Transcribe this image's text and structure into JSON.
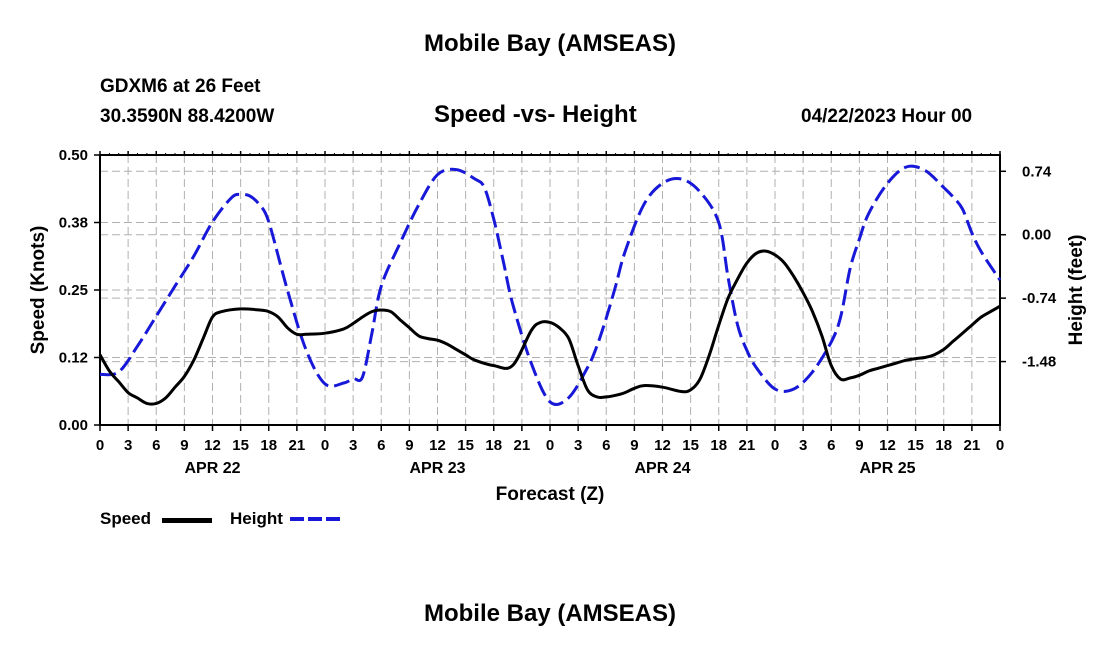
{
  "page": {
    "title_top": "Mobile Bay (AMSEAS)",
    "station": "GDXM6 at 26 Feet",
    "location": "30.3590N  88.4200W",
    "subtitle": "Speed -vs- Height",
    "date": "04/22/2023 Hour 00",
    "title_bottom": "Mobile Bay (AMSEAS)",
    "legend": {
      "speed_label": "Speed",
      "height_label": "Height"
    }
  },
  "chart_data": {
    "type": "line",
    "xlabel": "Forecast (Z)",
    "ylabel_left": "Speed (Knots)",
    "ylabel_right": "Height (feet)",
    "x_range_hours": [
      0,
      96
    ],
    "xtick_labels": [
      "0",
      "3",
      "6",
      "9",
      "12",
      "15",
      "18",
      "21",
      "0",
      "3",
      "6",
      "9",
      "12",
      "15",
      "18",
      "21",
      "0",
      "3",
      "6",
      "9",
      "12",
      "15",
      "18",
      "21",
      "0",
      "3",
      "6",
      "9",
      "12",
      "15",
      "18",
      "21",
      "0"
    ],
    "day_labels": [
      {
        "label": "APR 22",
        "hour": 12
      },
      {
        "label": "APR 23",
        "hour": 36
      },
      {
        "label": "APR 24",
        "hour": 60
      },
      {
        "label": "APR 25",
        "hour": 84
      }
    ],
    "left_axis": {
      "ylim": [
        0,
        0.5
      ],
      "ticks": [
        "0.00",
        "0.12",
        "0.25",
        "0.38",
        "0.50"
      ]
    },
    "right_axis": {
      "ylim": [
        -2.22,
        0.93
      ],
      "ticks": [
        {
          "label": "0.74",
          "value": 0.74
        },
        {
          "label": "0.00",
          "value": 0.0
        },
        {
          "label": "-0.74",
          "value": -0.74
        },
        {
          "label": "-1.48",
          "value": -1.48
        }
      ]
    },
    "series": [
      {
        "name": "Speed",
        "color": "#000000",
        "axis": "left",
        "style": "solid",
        "x": [
          0,
          1,
          2,
          3,
          4,
          5,
          6,
          7,
          8,
          9,
          10,
          11,
          12,
          13,
          15,
          17,
          18,
          19,
          20,
          21,
          22,
          24,
          26,
          27,
          28,
          29,
          30,
          31,
          32,
          33,
          34,
          35,
          36,
          37,
          38,
          39,
          40,
          42,
          44,
          46,
          47,
          48,
          49,
          50,
          51,
          52,
          53,
          54,
          55,
          56,
          57,
          58,
          60,
          62,
          63,
          64,
          65,
          66,
          67,
          68,
          69,
          70,
          71,
          72,
          73,
          74,
          75,
          76,
          77,
          78,
          79,
          80,
          81,
          82,
          83,
          84,
          85,
          86,
          87,
          88,
          89,
          90,
          91,
          92,
          93,
          94,
          95,
          96
        ],
        "values": [
          0.13,
          0.1,
          0.08,
          0.06,
          0.05,
          0.04,
          0.04,
          0.05,
          0.07,
          0.09,
          0.12,
          0.16,
          0.2,
          0.21,
          0.215,
          0.213,
          0.21,
          0.2,
          0.18,
          0.168,
          0.168,
          0.17,
          0.178,
          0.188,
          0.2,
          0.21,
          0.213,
          0.21,
          0.195,
          0.18,
          0.165,
          0.16,
          0.157,
          0.15,
          0.14,
          0.13,
          0.12,
          0.11,
          0.11,
          0.175,
          0.19,
          0.19,
          0.18,
          0.16,
          0.11,
          0.065,
          0.052,
          0.052,
          0.055,
          0.06,
          0.068,
          0.073,
          0.07,
          0.062,
          0.065,
          0.085,
          0.13,
          0.185,
          0.235,
          0.27,
          0.3,
          0.318,
          0.322,
          0.315,
          0.3,
          0.275,
          0.245,
          0.21,
          0.165,
          0.11,
          0.085,
          0.087,
          0.092,
          0.1,
          0.105,
          0.11,
          0.115,
          0.12,
          0.123,
          0.125,
          0.13,
          0.14,
          0.155,
          0.17,
          0.185,
          0.2,
          0.21,
          0.22
        ]
      },
      {
        "name": "Height",
        "color": "#1818d8",
        "axis": "right",
        "style": "dashed",
        "x": [
          0,
          2,
          4,
          6,
          8,
          10,
          12,
          14,
          15,
          16,
          17,
          18,
          20,
          22,
          24,
          26,
          27,
          28,
          29,
          30,
          32,
          34,
          36,
          38,
          40,
          41,
          42,
          43,
          44,
          46,
          48,
          50,
          52,
          53,
          54,
          55,
          56,
          58,
          60,
          62,
          64,
          66,
          67,
          68,
          69,
          70,
          72,
          74,
          76,
          78,
          79,
          80,
          81,
          82,
          84,
          86,
          88,
          90,
          91,
          92,
          93,
          94,
          96
        ],
        "values": [
          -1.63,
          -1.6,
          -1.3,
          -0.95,
          -0.6,
          -0.25,
          0.15,
          0.43,
          0.47,
          0.45,
          0.35,
          0.15,
          -0.65,
          -1.35,
          -1.74,
          -1.73,
          -1.68,
          -1.66,
          -1.15,
          -0.6,
          -0.1,
          0.35,
          0.7,
          0.76,
          0.65,
          0.55,
          0.18,
          -0.3,
          -0.8,
          -1.5,
          -1.95,
          -1.9,
          -1.55,
          -1.3,
          -0.97,
          -0.6,
          -0.2,
          0.35,
          0.6,
          0.65,
          0.5,
          0.14,
          -0.5,
          -1.05,
          -1.35,
          -1.55,
          -1.8,
          -1.8,
          -1.6,
          -1.25,
          -0.96,
          -0.4,
          -0.05,
          0.25,
          0.6,
          0.79,
          0.75,
          0.55,
          0.44,
          0.3,
          0.02,
          -0.2,
          -0.53
        ]
      }
    ]
  }
}
